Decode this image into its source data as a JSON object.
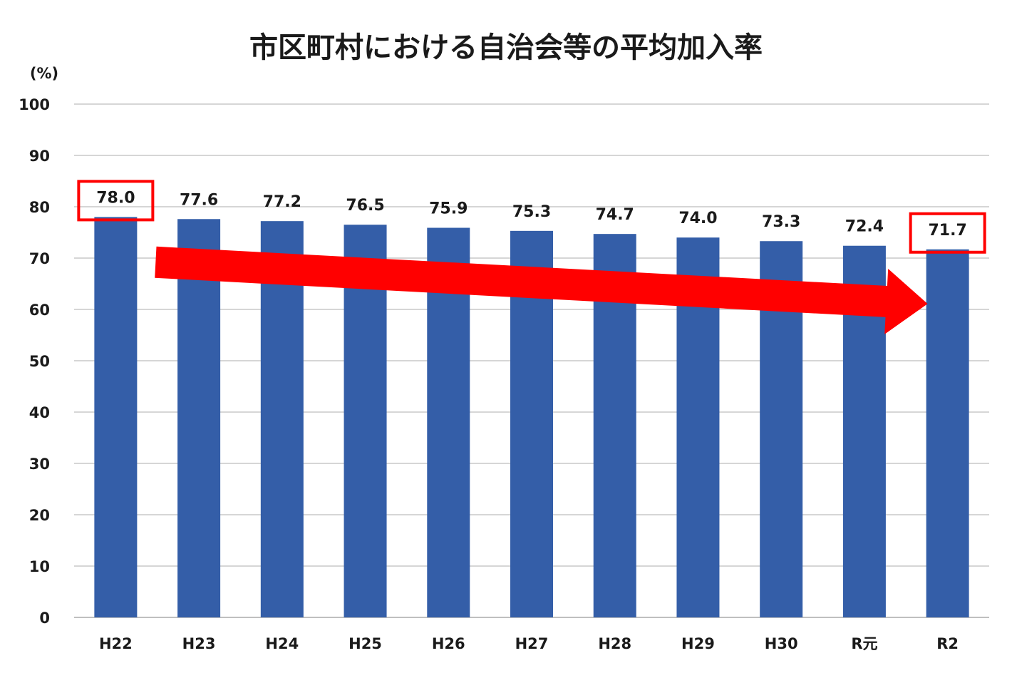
{
  "chart_data": {
    "type": "bar",
    "title": "市区町村における自治会等の平均加入率",
    "ylabel": "(%)",
    "xlabel": "",
    "ylim": [
      0,
      100
    ],
    "yticks": [
      0,
      10,
      20,
      30,
      40,
      50,
      60,
      70,
      80,
      90,
      100
    ],
    "grid": true,
    "categories": [
      "H22",
      "H23",
      "H24",
      "H25",
      "H26",
      "H27",
      "H28",
      "H29",
      "H30",
      "R元",
      "R2"
    ],
    "values": [
      78.0,
      77.6,
      77.2,
      76.5,
      75.9,
      75.3,
      74.7,
      74.0,
      73.3,
      72.4,
      71.7
    ],
    "value_labels": [
      "78.0",
      "77.6",
      "77.2",
      "76.5",
      "75.9",
      "75.3",
      "74.7",
      "74.0",
      "73.3",
      "72.4",
      "71.7"
    ],
    "highlighted_categories": [
      "H22",
      "R2"
    ],
    "trend_arrow": {
      "from": "H22",
      "to": "R2",
      "direction": "decreasing"
    },
    "colors": {
      "bar": "#345ea8",
      "highlight_box": "#ff0000",
      "arrow": "#ff0000",
      "grid": "#d6d6d6"
    }
  }
}
